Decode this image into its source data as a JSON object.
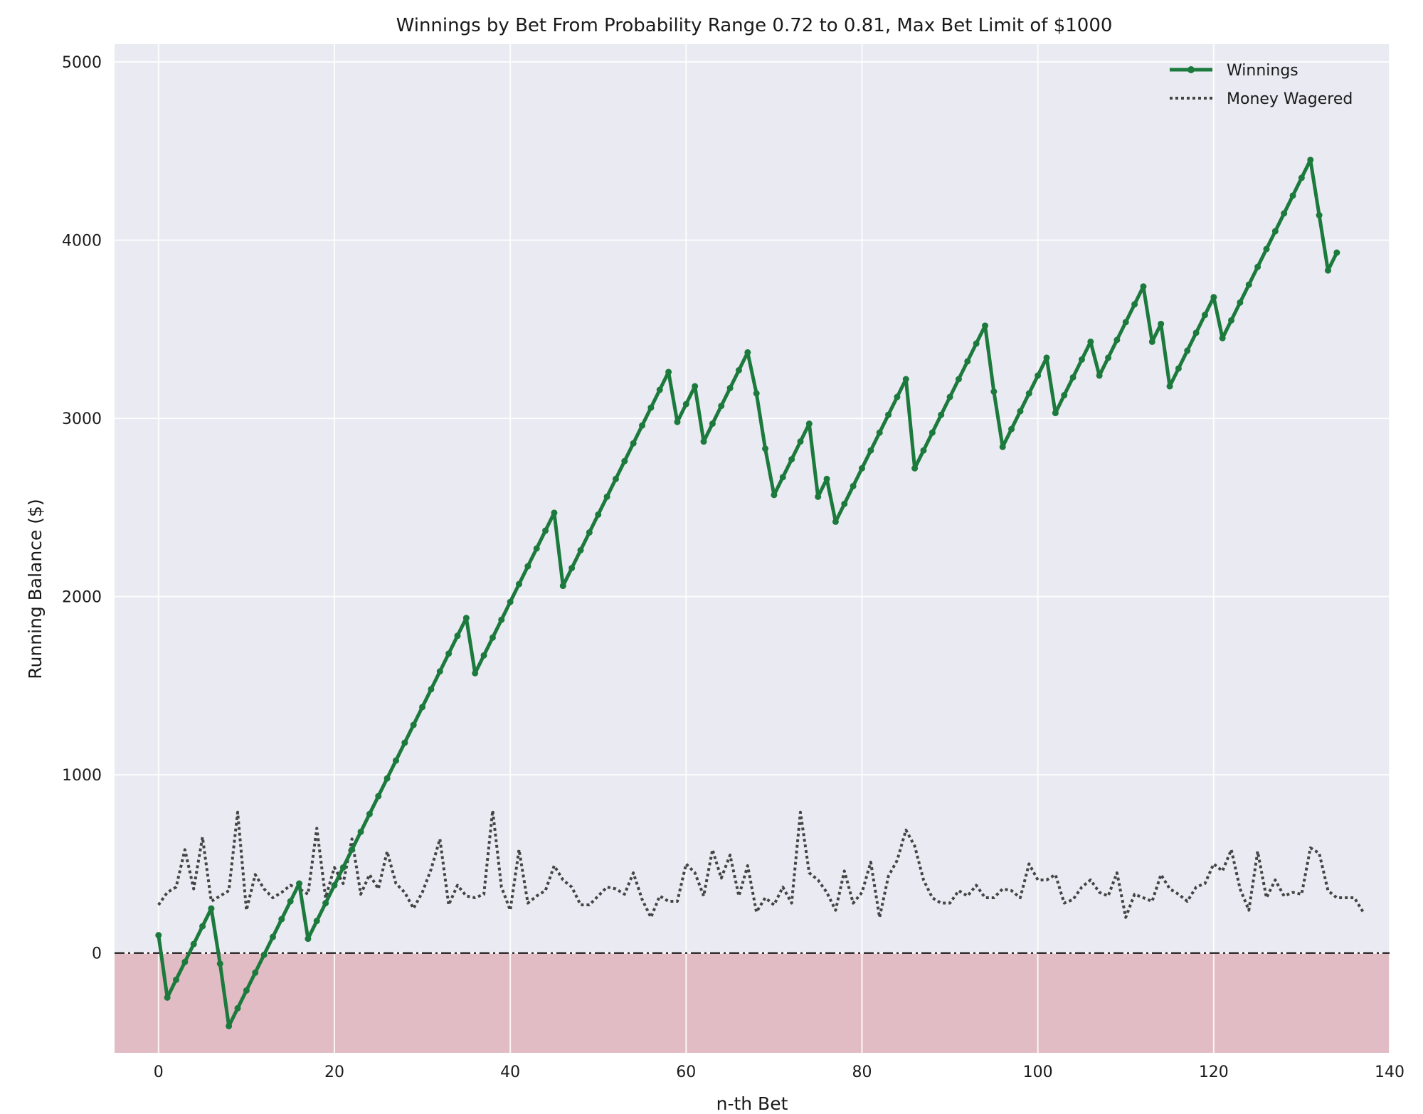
{
  "chart_data": {
    "type": "line",
    "title": "Winnings by Bet From Probability Range 0.72 to 0.81, Max Bet Limit of $1000",
    "xlabel": "n-th Bet",
    "ylabel": "Running Balance ($)",
    "xlim": [
      -5,
      140
    ],
    "ylim": [
      -560,
      5100
    ],
    "xticks": [
      0,
      20,
      40,
      60,
      80,
      100,
      120,
      140
    ],
    "yticks": [
      0,
      1000,
      2000,
      3000,
      4000,
      5000
    ],
    "grid": true,
    "legend_position": "top-right",
    "reference_line": {
      "y": 0,
      "style": "dash-dot",
      "color": "#000000"
    },
    "negative_region": {
      "from": -560,
      "to": 0,
      "color": "#e2bcc4"
    },
    "series": [
      {
        "name": "Winnings",
        "style": "solid-markers",
        "color": "#1b7a3c",
        "values": [
          100,
          -250,
          -150,
          -50,
          50,
          150,
          250,
          -60,
          -410,
          -310,
          -210,
          -110,
          -10,
          90,
          190,
          290,
          390,
          80,
          180,
          280,
          380,
          480,
          580,
          680,
          780,
          880,
          980,
          1080,
          1180,
          1280,
          1380,
          1480,
          1580,
          1680,
          1780,
          1880,
          1570,
          1670,
          1770,
          1870,
          1970,
          2070,
          2170,
          2270,
          2370,
          2470,
          2060,
          2160,
          2260,
          2360,
          2460,
          2560,
          2660,
          2760,
          2860,
          2960,
          3060,
          3160,
          3260,
          2980,
          3080,
          3180,
          2870,
          2970,
          3070,
          3170,
          3270,
          3370,
          3140,
          2830,
          2570,
          2670,
          2770,
          2870,
          2970,
          2560,
          2660,
          2420,
          2520,
          2620,
          2720,
          2820,
          2920,
          3020,
          3120,
          3220,
          2720,
          2820,
          2920,
          3020,
          3120,
          3220,
          3320,
          3420,
          3520,
          3150,
          2840,
          2940,
          3040,
          3140,
          3240,
          3340,
          3030,
          3130,
          3230,
          3330,
          3430,
          3240,
          3340,
          3440,
          3540,
          3640,
          3740,
          3430,
          3530,
          3180,
          3280,
          3380,
          3480,
          3580,
          3680,
          3450,
          3550,
          3650,
          3750,
          3850,
          3950,
          4050,
          4150,
          4250,
          4350,
          4450,
          4140,
          3830,
          3930
        ]
      },
      {
        "name": "Money Wagered",
        "style": "dotted",
        "color": "#444444",
        "values": [
          270,
          340,
          370,
          580,
          360,
          650,
          290,
          320,
          350,
          790,
          240,
          440,
          360,
          310,
          340,
          380,
          360,
          330,
          700,
          310,
          480,
          390,
          640,
          330,
          440,
          360,
          570,
          390,
          340,
          250,
          340,
          470,
          640,
          270,
          380,
          320,
          310,
          330,
          800,
          370,
          240,
          580,
          280,
          320,
          350,
          490,
          410,
          370,
          270,
          270,
          320,
          370,
          360,
          330,
          450,
          300,
          200,
          320,
          290,
          290,
          500,
          450,
          320,
          580,
          420,
          550,
          320,
          490,
          230,
          310,
          270,
          370,
          280,
          790,
          450,
          410,
          340,
          240,
          460,
          280,
          340,
          510,
          200,
          430,
          520,
          690,
          600,
          410,
          310,
          280,
          280,
          350,
          320,
          380,
          310,
          310,
          360,
          350,
          310,
          500,
          410,
          410,
          440,
          280,
          300,
          370,
          410,
          340,
          320,
          450,
          200,
          330,
          310,
          290,
          440,
          360,
          330,
          290,
          370,
          390,
          500,
          460,
          580,
          360,
          240,
          570,
          310,
          410,
          320,
          340,
          330,
          590,
          560,
          350,
          310,
          310,
          310,
          230
        ]
      }
    ]
  }
}
